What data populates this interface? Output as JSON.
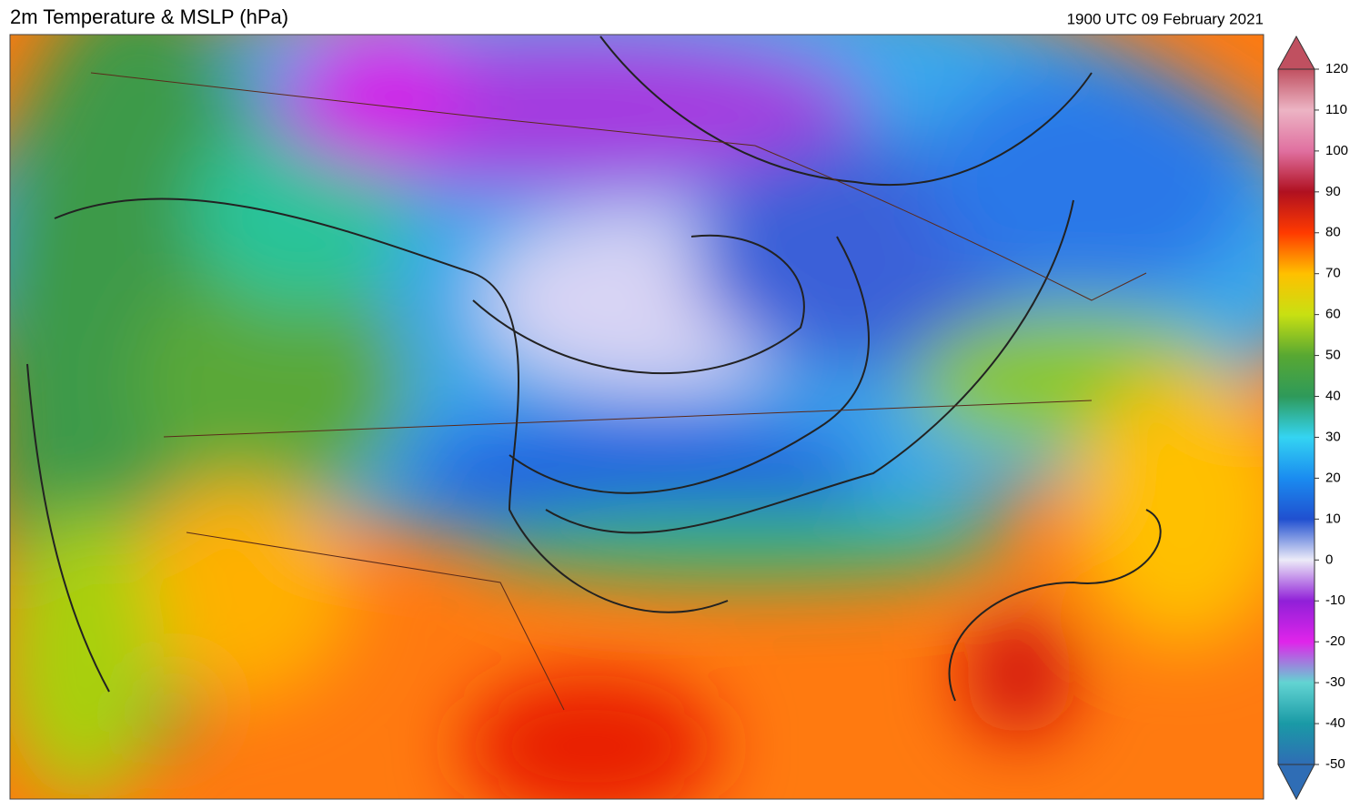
{
  "header": {
    "title": "2m Temperature & MSLP (hPa)",
    "timestamp": "1900 UTC 09 February 2021"
  },
  "colorbar": {
    "lim": [
      -50,
      120
    ],
    "ticks": [
      -50,
      -40,
      -30,
      -20,
      -10,
      0,
      10,
      20,
      30,
      40,
      50,
      60,
      70,
      80,
      90,
      100,
      110,
      120
    ],
    "colors": [
      "#2f6db5",
      "#1a9aa6",
      "#62d4d2",
      "#e024ea",
      "#9020d8",
      "#ecebf8",
      "#2050d0",
      "#1a8cf0",
      "#34d4f2",
      "#2e9a5a",
      "#58a832",
      "#c8e012",
      "#ffc000",
      "#ff3a00",
      "#b01020",
      "#e070a0",
      "#ecb4c4",
      "#c05060"
    ]
  }
}
